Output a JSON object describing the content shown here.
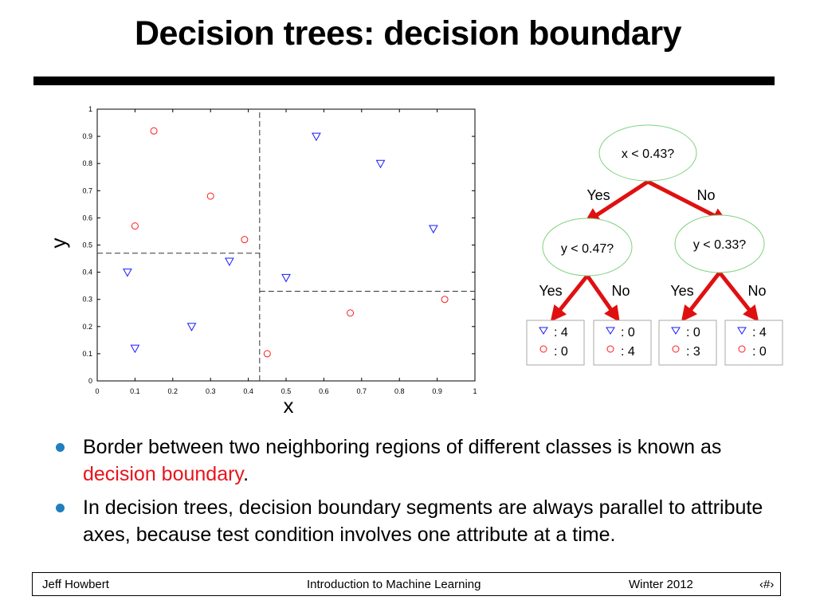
{
  "slide": {
    "title": "Decision trees: decision boundary",
    "bullets": [
      {
        "text": "Border between two neighboring regions of different classes is known as ",
        "highlight": "decision boundary",
        "tail": "."
      },
      {
        "text": "In decision trees, decision boundary segments are always parallel to attribute axes, because test condition involves one attribute at a time.",
        "highlight": "",
        "tail": ""
      }
    ],
    "highlight_color": "#e8141b",
    "bullet_color": "#1f7fbf"
  },
  "footer": {
    "author": "Jeff Howbert",
    "course": "Introduction to Machine Learning",
    "term": "Winter 2012",
    "page": "‹#›"
  },
  "chart_data": {
    "type": "scatter",
    "xlabel": "x",
    "ylabel": "y",
    "xlim": [
      0,
      1
    ],
    "ylim": [
      0,
      1
    ],
    "xticks": [
      "0",
      "0.1",
      "0.2",
      "0.3",
      "0.4",
      "0.5",
      "0.6",
      "0.7",
      "0.8",
      "0.9",
      "1"
    ],
    "yticks": [
      "0",
      "0.1",
      "0.2",
      "0.3",
      "0.4",
      "0.5",
      "0.6",
      "0.7",
      "0.8",
      "0.9",
      "1"
    ],
    "grid": false,
    "series": [
      {
        "marker": "triangle-down",
        "color": "#1a1aff",
        "points": [
          [
            0.08,
            0.4
          ],
          [
            0.1,
            0.12
          ],
          [
            0.25,
            0.2
          ],
          [
            0.35,
            0.44
          ],
          [
            0.5,
            0.38
          ],
          [
            0.58,
            0.9
          ],
          [
            0.75,
            0.8
          ],
          [
            0.89,
            0.56
          ]
        ]
      },
      {
        "marker": "circle",
        "color": "#ff1a1a",
        "points": [
          [
            0.15,
            0.92
          ],
          [
            0.1,
            0.57
          ],
          [
            0.3,
            0.68
          ],
          [
            0.39,
            0.52
          ],
          [
            0.45,
            0.1
          ],
          [
            0.67,
            0.25
          ],
          [
            0.92,
            0.3
          ]
        ]
      }
    ],
    "boundaries": [
      {
        "axis": "x",
        "value": 0.43,
        "from": 0,
        "to": 1
      },
      {
        "axis": "y",
        "value": 0.47,
        "from": 0,
        "to": 0.43
      },
      {
        "axis": "y",
        "value": 0.33,
        "from": 0.43,
        "to": 1
      }
    ]
  },
  "tree": {
    "root": "x < 0.43?",
    "left_node": "y < 0.47?",
    "right_node": "y < 0.33?",
    "yes": "Yes",
    "no": "No",
    "edge_color": "#e01010",
    "node_color": "#7fd17f",
    "leaves": [
      {
        "tri": ": 4",
        "circ": ": 0"
      },
      {
        "tri": ": 0",
        "circ": ": 4"
      },
      {
        "tri": ": 0",
        "circ": ": 3"
      },
      {
        "tri": ": 4",
        "circ": ": 0"
      }
    ]
  }
}
